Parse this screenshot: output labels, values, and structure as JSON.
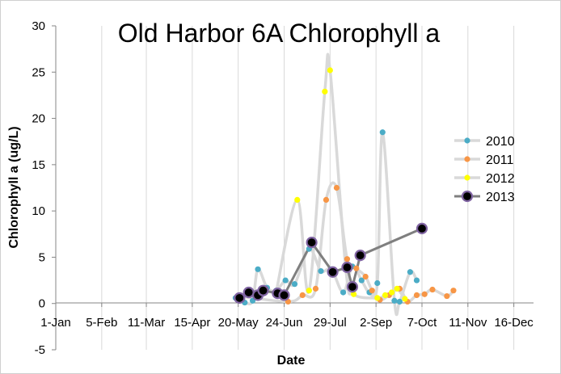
{
  "chart_data": {
    "type": "line",
    "title": "Old Harbor 6A Chlorophyll a",
    "xlabel": "Date",
    "ylabel": "Chlorophyll a (ug/L)",
    "ylim": [
      -5,
      30
    ],
    "yticks": [
      "-5",
      "0",
      "5",
      "10",
      "15",
      "20",
      "25",
      "30"
    ],
    "xlim": [
      "01-01",
      "12-31"
    ],
    "xticks": [
      {
        "label": "1-Jan",
        "date": "01-01"
      },
      {
        "label": "5-Feb",
        "date": "02-05"
      },
      {
        "label": "11-Mar",
        "date": "03-11"
      },
      {
        "label": "15-Apr",
        "date": "04-15"
      },
      {
        "label": "20-May",
        "date": "05-20"
      },
      {
        "label": "24-Jun",
        "date": "06-24"
      },
      {
        "label": "29-Jul",
        "date": "07-29"
      },
      {
        "label": "2-Sep",
        "date": "09-02"
      },
      {
        "label": "7-Oct",
        "date": "10-07"
      },
      {
        "label": "11-Nov",
        "date": "11-11"
      },
      {
        "label": "16-Dec",
        "date": "12-16"
      }
    ],
    "grid": "vertical",
    "legend": "right",
    "series": [
      {
        "name": "2010",
        "color": "#4bacc6",
        "line_color": "#d9d9d9",
        "marker": "small",
        "points": [
          [
            "05-18",
            0.6
          ],
          [
            "05-25",
            0.1
          ],
          [
            "05-31",
            0.3
          ],
          [
            "06-04",
            3.7
          ],
          [
            "06-11",
            1.7
          ],
          [
            "06-18",
            1.4
          ],
          [
            "06-25",
            2.5
          ],
          [
            "07-02",
            2.1
          ],
          [
            "07-13",
            5.9
          ],
          [
            "07-22",
            3.5
          ],
          [
            "07-30",
            3.7
          ],
          [
            "08-08",
            1.2
          ],
          [
            "08-15",
            4.0
          ],
          [
            "08-22",
            2.5
          ],
          [
            "08-28",
            1.2
          ],
          [
            "09-03",
            2.2
          ],
          [
            "09-07",
            18.5
          ],
          [
            "09-16",
            0.3
          ],
          [
            "09-20",
            0.2
          ],
          [
            "09-28",
            3.4
          ],
          [
            "10-03",
            2.5
          ]
        ]
      },
      {
        "name": "2011",
        "color": "#f79646",
        "line_color": "#d9d9d9",
        "marker": "small",
        "points": [
          [
            "05-20",
            0.8
          ],
          [
            "06-27",
            0.2
          ],
          [
            "07-08",
            0.9
          ],
          [
            "07-18",
            1.6
          ],
          [
            "07-26",
            11.2
          ],
          [
            "08-03",
            12.5
          ],
          [
            "08-11",
            4.8
          ],
          [
            "08-18",
            3.8
          ],
          [
            "08-25",
            2.9
          ],
          [
            "08-30",
            1.4
          ],
          [
            "09-05",
            0.4
          ],
          [
            "09-12",
            0.9
          ],
          [
            "09-20",
            1.6
          ],
          [
            "09-26",
            0.2
          ],
          [
            "10-03",
            0.9
          ],
          [
            "10-09",
            1.0
          ],
          [
            "10-15",
            1.5
          ],
          [
            "10-26",
            0.8
          ],
          [
            "10-31",
            1.4
          ]
        ]
      },
      {
        "name": "2012",
        "color": "#ffff00",
        "line_color": "#d9d9d9",
        "marker": "small",
        "points": [
          [
            "06-18",
            1.3
          ],
          [
            "07-04",
            11.2
          ],
          [
            "07-13",
            1.4
          ],
          [
            "07-25",
            22.9
          ],
          [
            "07-29",
            25.2
          ],
          [
            "08-10",
            3.7
          ],
          [
            "08-16",
            1.0
          ],
          [
            "09-03",
            0.6
          ],
          [
            "09-09",
            0.9
          ],
          [
            "09-14",
            1.2
          ],
          [
            "09-18",
            1.6
          ],
          [
            "09-24",
            0.5
          ]
        ]
      },
      {
        "name": "2013",
        "color": "#000000",
        "line_color": "#7f7f7f",
        "marker": "large",
        "points": [
          [
            "05-21",
            0.6
          ],
          [
            "05-28",
            1.2
          ],
          [
            "06-04",
            0.9
          ],
          [
            "06-08",
            1.4
          ],
          [
            "06-19",
            1.1
          ],
          [
            "06-24",
            0.9
          ],
          [
            "07-15",
            6.6
          ],
          [
            "07-31",
            3.4
          ],
          [
            "08-11",
            3.9
          ],
          [
            "08-15",
            1.8
          ],
          [
            "08-21",
            5.2
          ],
          [
            "10-07",
            8.1
          ]
        ]
      }
    ]
  }
}
